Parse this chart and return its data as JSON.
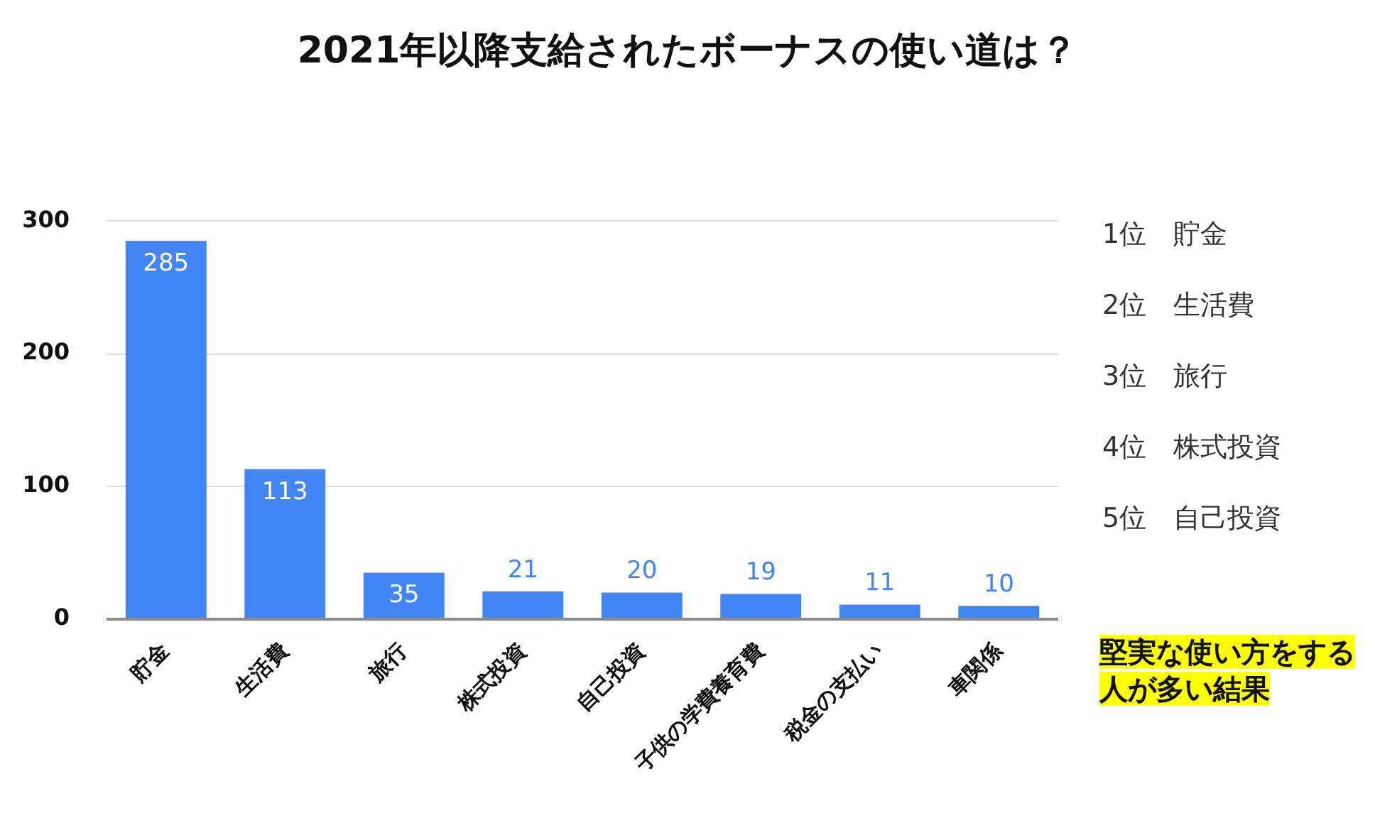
{
  "chart_data": {
    "type": "bar",
    "title": "2021年以降支給されたボーナスの使い道は？",
    "categories": [
      "貯金",
      "生活費",
      "旅行",
      "株式投資",
      "自己投資",
      "子供の学費養育費",
      "税金の支払い",
      "車関係"
    ],
    "values": [
      285,
      113,
      35,
      21,
      20,
      19,
      11,
      10
    ],
    "color": "#4285f4",
    "ylim": [
      0,
      300
    ],
    "yticks": [
      0,
      100,
      200,
      300
    ],
    "grid": "y",
    "legend": false,
    "data_labels": true,
    "annotations": [
      "1位　貯金",
      "2位　生活費",
      "3位　旅行",
      "4位　株式投資",
      "5位　自己投資",
      "堅実な使い方をする人が多い結果"
    ]
  }
}
